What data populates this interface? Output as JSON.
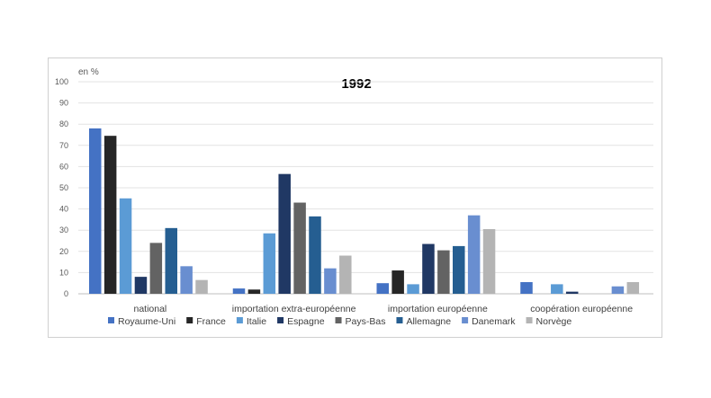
{
  "chart_data": {
    "type": "bar",
    "title": "1992",
    "unit_label": "en %",
    "ylim": [
      0,
      100
    ],
    "y_ticks": [
      0,
      10,
      20,
      30,
      40,
      50,
      60,
      70,
      80,
      90,
      100
    ],
    "grid": true,
    "legend_position": "bottom",
    "categories": [
      "national",
      "importation extra-européenne",
      "importation européenne",
      "coopération européenne"
    ],
    "series": [
      {
        "name": "Royaume-Uni",
        "color": "#4472C4",
        "values": [
          78,
          2.5,
          5,
          5.5
        ]
      },
      {
        "name": "France",
        "color": "#262626",
        "values": [
          74.5,
          2,
          11,
          0
        ]
      },
      {
        "name": "Italie",
        "color": "#5B9BD5",
        "values": [
          45,
          28.5,
          4.5,
          4.5
        ]
      },
      {
        "name": "Espagne",
        "color": "#203864",
        "values": [
          8,
          56.5,
          23.5,
          1
        ]
      },
      {
        "name": "Pays-Bas",
        "color": "#636363",
        "values": [
          24,
          43,
          20.5,
          0
        ]
      },
      {
        "name": "Allemagne",
        "color": "#255E91",
        "values": [
          31,
          36.5,
          22.5,
          0
        ]
      },
      {
        "name": "Danemark",
        "color": "#698ED0",
        "values": [
          13,
          12,
          37,
          3.5
        ]
      },
      {
        "name": "Norvège",
        "color": "#B4B4B4",
        "values": [
          6.5,
          18,
          30.5,
          5.5
        ]
      }
    ]
  }
}
